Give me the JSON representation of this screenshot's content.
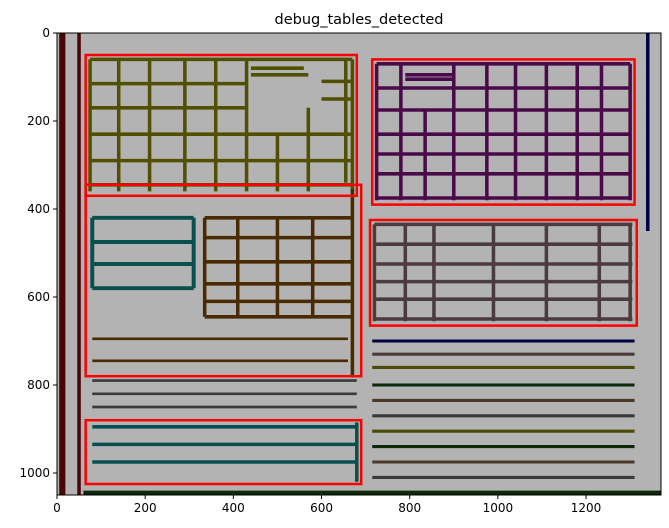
{
  "chart_data": {
    "type": "image",
    "title": "debug_tables_detected",
    "xlabel": "",
    "ylabel": "",
    "xlim": [
      0,
      1370
    ],
    "ylim": [
      1050,
      0
    ],
    "xticks": [
      0,
      200,
      400,
      600,
      800,
      1000,
      1200
    ],
    "yticks": [
      0,
      200,
      400,
      600,
      800,
      1000
    ],
    "grid": false,
    "background_color": "#b3b3b3",
    "box_color": "#ff0000",
    "detected_table_boxes": [
      {
        "x0": 65,
        "y0": 50,
        "x1": 680,
        "y1": 370
      },
      {
        "x0": 715,
        "y0": 60,
        "x1": 1310,
        "y1": 390
      },
      {
        "x0": 65,
        "y0": 345,
        "x1": 690,
        "y1": 780
      },
      {
        "x0": 710,
        "y0": 425,
        "x1": 1315,
        "y1": 665
      },
      {
        "x0": 65,
        "y0": 880,
        "x1": 690,
        "y1": 1025
      }
    ],
    "line_segments": [
      {
        "c": "#505000",
        "w": 8,
        "x0": 75,
        "y0": 60,
        "x1": 670,
        "y1": 60
      },
      {
        "c": "#505000",
        "w": 8,
        "x0": 75,
        "y0": 115,
        "x1": 430,
        "y1": 115
      },
      {
        "c": "#505000",
        "w": 8,
        "x0": 75,
        "y0": 170,
        "x1": 430,
        "y1": 170
      },
      {
        "c": "#505000",
        "w": 8,
        "x0": 75,
        "y0": 230,
        "x1": 670,
        "y1": 230
      },
      {
        "c": "#505000",
        "w": 8,
        "x0": 75,
        "y0": 290,
        "x1": 670,
        "y1": 290
      },
      {
        "c": "#505000",
        "w": 8,
        "x0": 75,
        "y0": 345,
        "x1": 670,
        "y1": 345
      },
      {
        "c": "#505000",
        "w": 8,
        "x0": 440,
        "y0": 80,
        "x1": 560,
        "y1": 80
      },
      {
        "c": "#505000",
        "w": 8,
        "x0": 440,
        "y0": 95,
        "x1": 570,
        "y1": 95
      },
      {
        "c": "#505000",
        "w": 8,
        "x0": 600,
        "y0": 110,
        "x1": 670,
        "y1": 110
      },
      {
        "c": "#505000",
        "w": 8,
        "x0": 600,
        "y0": 150,
        "x1": 670,
        "y1": 150
      },
      {
        "c": "#505000",
        "w": 8,
        "x0": 75,
        "y0": 60,
        "x1": 75,
        "y1": 360
      },
      {
        "c": "#505000",
        "w": 8,
        "x0": 140,
        "y0": 60,
        "x1": 140,
        "y1": 360
      },
      {
        "c": "#505000",
        "w": 8,
        "x0": 210,
        "y0": 60,
        "x1": 210,
        "y1": 360
      },
      {
        "c": "#505000",
        "w": 8,
        "x0": 290,
        "y0": 60,
        "x1": 290,
        "y1": 360
      },
      {
        "c": "#505000",
        "w": 8,
        "x0": 360,
        "y0": 60,
        "x1": 360,
        "y1": 360
      },
      {
        "c": "#505000",
        "w": 8,
        "x0": 430,
        "y0": 60,
        "x1": 430,
        "y1": 360
      },
      {
        "c": "#505000",
        "w": 8,
        "x0": 500,
        "y0": 230,
        "x1": 500,
        "y1": 360
      },
      {
        "c": "#505000",
        "w": 8,
        "x0": 570,
        "y0": 170,
        "x1": 570,
        "y1": 360
      },
      {
        "c": "#505000",
        "w": 8,
        "x0": 670,
        "y0": 60,
        "x1": 670,
        "y1": 360
      },
      {
        "c": "#505000",
        "w": 8,
        "x0": 655,
        "y0": 60,
        "x1": 655,
        "y1": 340
      },
      {
        "c": "#4a0a4a",
        "w": 8,
        "x0": 725,
        "y0": 70,
        "x1": 1300,
        "y1": 70
      },
      {
        "c": "#4a0a4a",
        "w": 8,
        "x0": 725,
        "y0": 125,
        "x1": 1300,
        "y1": 125
      },
      {
        "c": "#4a0a4a",
        "w": 8,
        "x0": 725,
        "y0": 175,
        "x1": 1300,
        "y1": 175
      },
      {
        "c": "#4a0a4a",
        "w": 8,
        "x0": 725,
        "y0": 230,
        "x1": 1300,
        "y1": 230
      },
      {
        "c": "#4a0a4a",
        "w": 8,
        "x0": 725,
        "y0": 275,
        "x1": 1300,
        "y1": 275
      },
      {
        "c": "#4a0a4a",
        "w": 8,
        "x0": 725,
        "y0": 320,
        "x1": 1300,
        "y1": 320
      },
      {
        "c": "#4a0a4a",
        "w": 8,
        "x0": 725,
        "y0": 375,
        "x1": 1300,
        "y1": 375
      },
      {
        "c": "#4a0a4a",
        "w": 8,
        "x0": 790,
        "y0": 95,
        "x1": 900,
        "y1": 95
      },
      {
        "c": "#4a0a4a",
        "w": 8,
        "x0": 790,
        "y0": 105,
        "x1": 900,
        "y1": 105
      },
      {
        "c": "#4a0a4a",
        "w": 8,
        "x0": 725,
        "y0": 70,
        "x1": 725,
        "y1": 380
      },
      {
        "c": "#4a0a4a",
        "w": 8,
        "x0": 780,
        "y0": 70,
        "x1": 780,
        "y1": 380
      },
      {
        "c": "#4a0a4a",
        "w": 8,
        "x0": 835,
        "y0": 175,
        "x1": 835,
        "y1": 380
      },
      {
        "c": "#4a0a4a",
        "w": 8,
        "x0": 900,
        "y0": 70,
        "x1": 900,
        "y1": 380
      },
      {
        "c": "#4a0a4a",
        "w": 8,
        "x0": 975,
        "y0": 70,
        "x1": 975,
        "y1": 380
      },
      {
        "c": "#4a0a4a",
        "w": 8,
        "x0": 1040,
        "y0": 70,
        "x1": 1040,
        "y1": 380
      },
      {
        "c": "#4a0a4a",
        "w": 8,
        "x0": 1110,
        "y0": 70,
        "x1": 1110,
        "y1": 380
      },
      {
        "c": "#4a0a4a",
        "w": 8,
        "x0": 1180,
        "y0": 70,
        "x1": 1180,
        "y1": 380
      },
      {
        "c": "#4a0a4a",
        "w": 8,
        "x0": 1235,
        "y0": 70,
        "x1": 1235,
        "y1": 380
      },
      {
        "c": "#4a0a4a",
        "w": 8,
        "x0": 1300,
        "y0": 70,
        "x1": 1300,
        "y1": 380
      },
      {
        "c": "#0a4f50",
        "w": 9,
        "x0": 80,
        "y0": 420,
        "x1": 310,
        "y1": 420
      },
      {
        "c": "#0a4f50",
        "w": 9,
        "x0": 80,
        "y0": 475,
        "x1": 310,
        "y1": 475
      },
      {
        "c": "#0a4f50",
        "w": 9,
        "x0": 80,
        "y0": 525,
        "x1": 310,
        "y1": 525
      },
      {
        "c": "#0a4f50",
        "w": 9,
        "x0": 80,
        "y0": 580,
        "x1": 310,
        "y1": 580
      },
      {
        "c": "#0a4f50",
        "w": 9,
        "x0": 80,
        "y0": 420,
        "x1": 80,
        "y1": 580
      },
      {
        "c": "#0a4f50",
        "w": 9,
        "x0": 310,
        "y0": 420,
        "x1": 310,
        "y1": 580
      },
      {
        "c": "#4a2a00",
        "w": 8,
        "x0": 335,
        "y0": 420,
        "x1": 670,
        "y1": 420
      },
      {
        "c": "#4a2a00",
        "w": 8,
        "x0": 335,
        "y0": 465,
        "x1": 670,
        "y1": 465
      },
      {
        "c": "#4a2a00",
        "w": 8,
        "x0": 335,
        "y0": 520,
        "x1": 670,
        "y1": 520
      },
      {
        "c": "#4a2a00",
        "w": 8,
        "x0": 335,
        "y0": 570,
        "x1": 670,
        "y1": 570
      },
      {
        "c": "#4a2a00",
        "w": 8,
        "x0": 335,
        "y0": 610,
        "x1": 670,
        "y1": 610
      },
      {
        "c": "#4a2a00",
        "w": 8,
        "x0": 335,
        "y0": 645,
        "x1": 670,
        "y1": 645
      },
      {
        "c": "#4a2a00",
        "w": 8,
        "x0": 335,
        "y0": 420,
        "x1": 335,
        "y1": 645
      },
      {
        "c": "#4a2a00",
        "w": 8,
        "x0": 410,
        "y0": 420,
        "x1": 410,
        "y1": 645
      },
      {
        "c": "#4a2a00",
        "w": 8,
        "x0": 500,
        "y0": 420,
        "x1": 500,
        "y1": 645
      },
      {
        "c": "#4a2a00",
        "w": 8,
        "x0": 580,
        "y0": 420,
        "x1": 580,
        "y1": 645
      },
      {
        "c": "#4a2a00",
        "w": 8,
        "x0": 670,
        "y0": 355,
        "x1": 670,
        "y1": 780
      },
      {
        "c": "#4a2a00",
        "w": 6,
        "x0": 80,
        "y0": 695,
        "x1": 660,
        "y1": 695
      },
      {
        "c": "#4a2a00",
        "w": 6,
        "x0": 80,
        "y0": 745,
        "x1": 660,
        "y1": 745
      },
      {
        "c": "#4b3b3f",
        "w": 8,
        "x0": 720,
        "y0": 435,
        "x1": 1305,
        "y1": 435
      },
      {
        "c": "#4b3b3f",
        "w": 8,
        "x0": 720,
        "y0": 480,
        "x1": 1305,
        "y1": 480
      },
      {
        "c": "#4b3b3f",
        "w": 8,
        "x0": 720,
        "y0": 525,
        "x1": 1305,
        "y1": 525
      },
      {
        "c": "#4b3b3f",
        "w": 8,
        "x0": 720,
        "y0": 565,
        "x1": 1305,
        "y1": 565
      },
      {
        "c": "#4b3b3f",
        "w": 8,
        "x0": 720,
        "y0": 605,
        "x1": 1305,
        "y1": 605
      },
      {
        "c": "#4b3b3f",
        "w": 8,
        "x0": 720,
        "y0": 650,
        "x1": 1305,
        "y1": 650
      },
      {
        "c": "#4b3b3f",
        "w": 8,
        "x0": 720,
        "y0": 435,
        "x1": 720,
        "y1": 655
      },
      {
        "c": "#4b3b3f",
        "w": 8,
        "x0": 790,
        "y0": 435,
        "x1": 790,
        "y1": 655
      },
      {
        "c": "#4b3b3f",
        "w": 8,
        "x0": 855,
        "y0": 435,
        "x1": 855,
        "y1": 655
      },
      {
        "c": "#4b3b3f",
        "w": 8,
        "x0": 990,
        "y0": 435,
        "x1": 990,
        "y1": 655
      },
      {
        "c": "#4b3b3f",
        "w": 8,
        "x0": 1110,
        "y0": 435,
        "x1": 1110,
        "y1": 655
      },
      {
        "c": "#4b3b3f",
        "w": 8,
        "x0": 1230,
        "y0": 435,
        "x1": 1230,
        "y1": 655
      },
      {
        "c": "#4b3b3f",
        "w": 8,
        "x0": 1300,
        "y0": 435,
        "x1": 1300,
        "y1": 655
      },
      {
        "c": "#000045",
        "w": 7,
        "x0": 715,
        "y0": 700,
        "x1": 1310,
        "y1": 700
      },
      {
        "c": "#4a3a3a",
        "w": 7,
        "x0": 715,
        "y0": 730,
        "x1": 1310,
        "y1": 730
      },
      {
        "c": "#4a4a00",
        "w": 7,
        "x0": 715,
        "y0": 760,
        "x1": 1310,
        "y1": 760
      },
      {
        "c": "#0a2a0a",
        "w": 7,
        "x0": 715,
        "y0": 800,
        "x1": 1310,
        "y1": 800
      },
      {
        "c": "#4a3a2a",
        "w": 7,
        "x0": 715,
        "y0": 835,
        "x1": 1310,
        "y1": 835
      },
      {
        "c": "#3a3a3a",
        "w": 7,
        "x0": 715,
        "y0": 870,
        "x1": 1310,
        "y1": 870
      },
      {
        "c": "#4a4a00",
        "w": 7,
        "x0": 715,
        "y0": 905,
        "x1": 1310,
        "y1": 905
      },
      {
        "c": "#0a2a0a",
        "w": 7,
        "x0": 715,
        "y0": 940,
        "x1": 1310,
        "y1": 940
      },
      {
        "c": "#4a3a2a",
        "w": 7,
        "x0": 715,
        "y0": 975,
        "x1": 1310,
        "y1": 975
      },
      {
        "c": "#3a3a3a",
        "w": 7,
        "x0": 715,
        "y0": 1010,
        "x1": 1310,
        "y1": 1010
      },
      {
        "c": "#3a3a3a",
        "w": 6,
        "x0": 80,
        "y0": 790,
        "x1": 680,
        "y1": 790
      },
      {
        "c": "#3a3a3a",
        "w": 6,
        "x0": 80,
        "y0": 820,
        "x1": 680,
        "y1": 820
      },
      {
        "c": "#3a3a3a",
        "w": 6,
        "x0": 80,
        "y0": 850,
        "x1": 680,
        "y1": 850
      },
      {
        "c": "#0a4f50",
        "w": 8,
        "x0": 80,
        "y0": 895,
        "x1": 680,
        "y1": 895
      },
      {
        "c": "#0a4f50",
        "w": 8,
        "x0": 80,
        "y0": 935,
        "x1": 680,
        "y1": 935
      },
      {
        "c": "#0a4f50",
        "w": 8,
        "x0": 80,
        "y0": 975,
        "x1": 680,
        "y1": 975
      },
      {
        "c": "#0a4f50",
        "w": 8,
        "x0": 680,
        "y0": 885,
        "x1": 680,
        "y1": 1020
      },
      {
        "c": "#4a0505",
        "w": 14,
        "x0": 12,
        "y0": 0,
        "x1": 12,
        "y1": 1050
      },
      {
        "c": "#4a0505",
        "w": 8,
        "x0": 50,
        "y0": 0,
        "x1": 50,
        "y1": 1050
      },
      {
        "c": "#000045",
        "w": 8,
        "x0": 1340,
        "y0": 0,
        "x1": 1340,
        "y1": 450
      },
      {
        "c": "#0a2a0a",
        "w": 10,
        "x0": 60,
        "y0": 1045,
        "x1": 1370,
        "y1": 1045
      }
    ]
  }
}
